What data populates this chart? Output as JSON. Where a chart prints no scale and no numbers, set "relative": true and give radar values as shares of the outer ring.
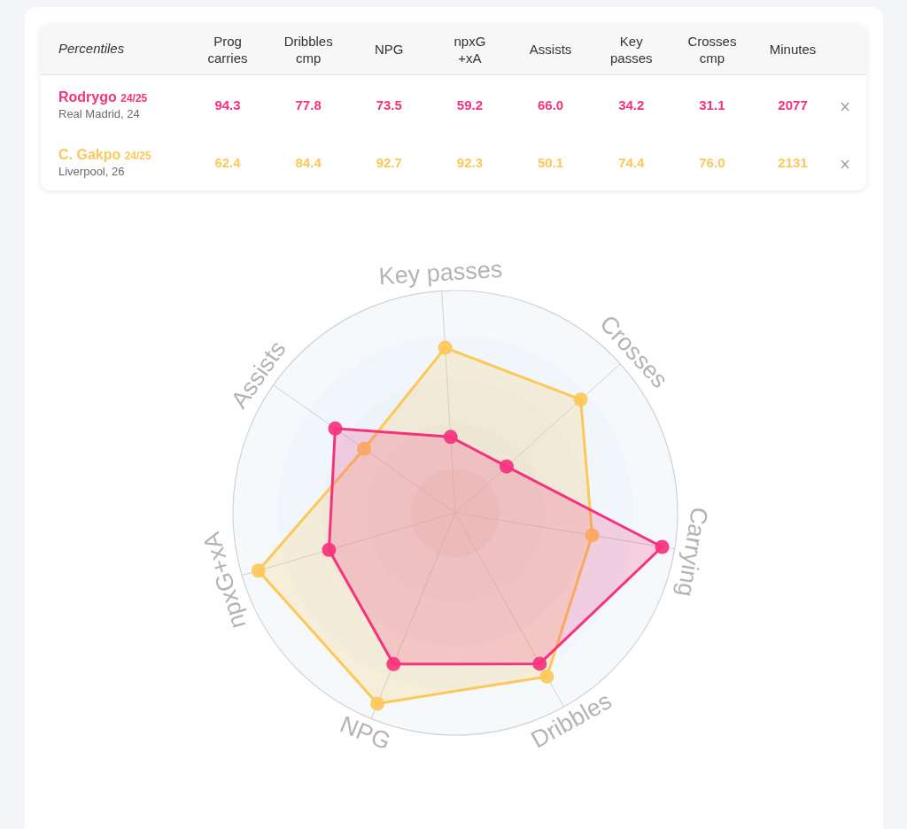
{
  "chart_data": [
    {
      "type": "other",
      "title": "Percentiles",
      "categories": [
        "Prog carries",
        "Dribbles cmp",
        "NPG",
        "npxG +xA",
        "Assists",
        "Key passes",
        "Crosses cmp",
        "Minutes"
      ],
      "series": [
        {
          "name": "Rodrygo 24/25",
          "values": [
            94.3,
            77.8,
            73.5,
            59.2,
            66.0,
            34.2,
            31.1,
            2077
          ],
          "value_labels": [
            "94.3",
            "77.8",
            "73.5",
            "59.2",
            "66.0",
            "34.2",
            "31.1",
            "2077"
          ]
        },
        {
          "name": "C. Gakpo 24/25",
          "values": [
            62.4,
            84.4,
            92.7,
            92.3,
            50.1,
            74.4,
            76.0,
            2131
          ],
          "value_labels": [
            "62.4",
            "84.4",
            "92.7",
            "92.3",
            "50.1",
            "74.4",
            "76.0",
            "2131"
          ]
        }
      ],
      "annotations": [
        "Real Madrid, 24",
        "Liverpool, 26"
      ]
    },
    {
      "type": "radar",
      "categories": [
        "Key passes",
        "Crosses",
        "Carrying",
        "Dribbles",
        "NPG",
        "npxG+xA",
        "Assists"
      ],
      "series": [
        {
          "color": "#f5337c",
          "values": [
            0.342,
            0.311,
            0.943,
            0.778,
            0.735,
            0.592,
            0.66
          ]
        },
        {
          "color": "#fdc858",
          "values": [
            0.744,
            0.76,
            0.624,
            0.844,
            0.927,
            0.923,
            0.501
          ]
        }
      ],
      "relative": true,
      "grid": true,
      "marker": "circle"
    }
  ]
}
